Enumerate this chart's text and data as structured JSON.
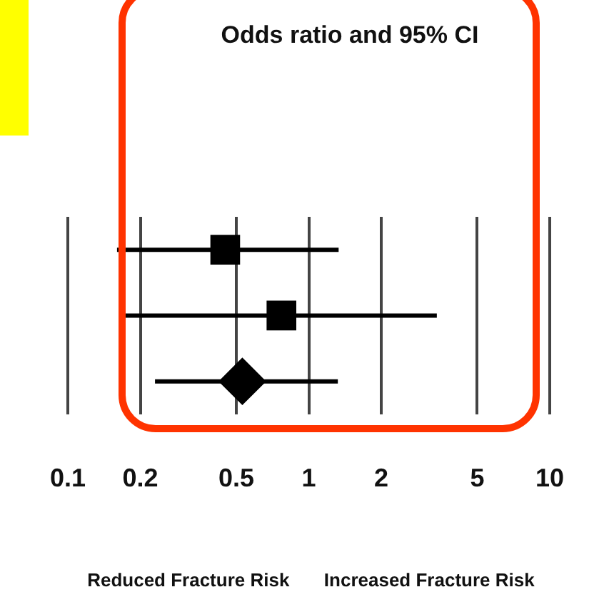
{
  "chart_data": {
    "type": "scatter",
    "title": "Odds ratio and 95% CI",
    "orientation": "horizontal",
    "log": "x",
    "grid": "x",
    "legend": false,
    "categories": [
      null,
      null,
      null
    ],
    "xlim": [
      0.1,
      10
    ],
    "xticks": [
      0.1,
      0.2,
      0.5,
      1,
      2,
      5,
      10
    ],
    "series": [
      {
        "color": "#000000",
        "marker": "square",
        "values": [
          0.45,
          0.77,
          null
        ],
        "errors": [
          [
            0.16,
            1.33
          ],
          [
            0.17,
            3.4
          ],
          null
        ]
      },
      {
        "color": "#000000",
        "marker": "diamond",
        "values": [
          null,
          null,
          0.53
        ],
        "errors": [
          null,
          null,
          [
            0.23,
            1.32
          ]
        ]
      }
    ],
    "annotations": [
      "Reduced Fracture Risk",
      "Increased Fracture Risk"
    ]
  }
}
